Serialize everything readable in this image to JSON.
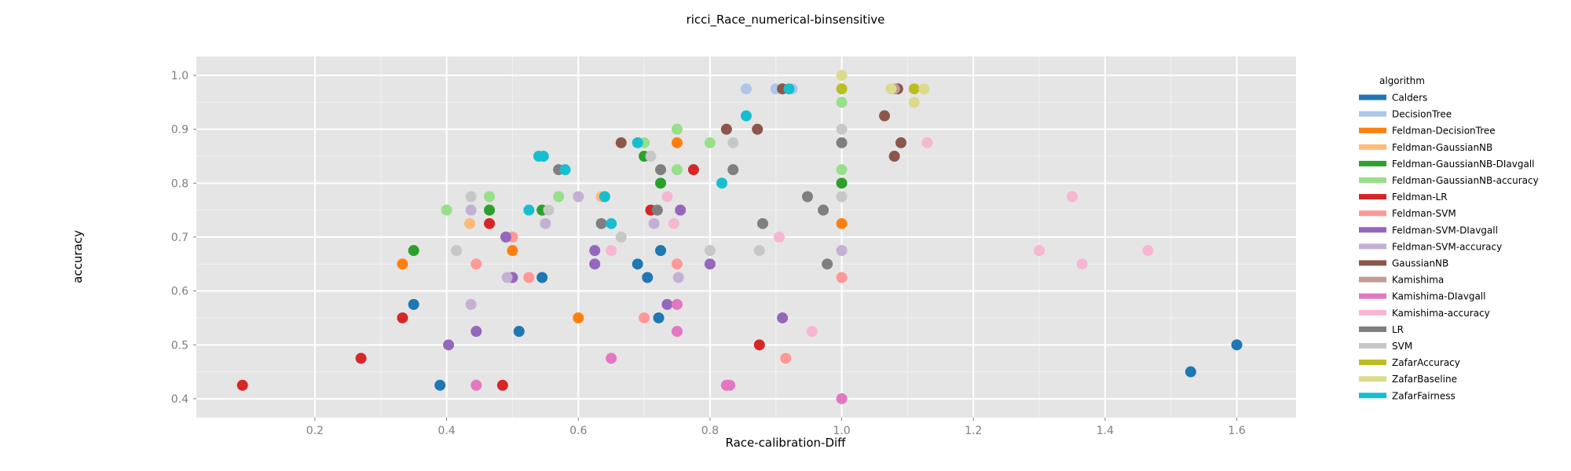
{
  "chart_data": {
    "type": "scatter",
    "title": "ricci_Race_numerical-binsensitive",
    "xlabel": "Race-calibration-Diff",
    "ylabel": "accuracy",
    "xlim": [
      0.02,
      1.69
    ],
    "ylim": [
      0.365,
      1.035
    ],
    "x_ticks": [
      0.2,
      0.4,
      0.6,
      0.8,
      1.0,
      1.2,
      1.4,
      1.6
    ],
    "x_tick_labels": [
      "0.2",
      "0.4",
      "0.6",
      "0.8",
      "1.0",
      "1.2",
      "1.4",
      "1.6"
    ],
    "y_ticks": [
      0.4,
      0.5,
      0.6,
      0.7,
      0.8,
      0.9,
      1.0
    ],
    "y_tick_labels": [
      "0.4",
      "0.5",
      "0.6",
      "0.7",
      "0.8",
      "0.9",
      "1.0"
    ],
    "grid": true,
    "background": "#e5e5e5",
    "legend_title": "algorithm",
    "legend_position": "right",
    "series": [
      {
        "name": "Calders",
        "color": "#1f77b4",
        "points": [
          [
            0.35,
            0.575
          ],
          [
            0.545,
            0.625
          ],
          [
            0.39,
            0.425
          ],
          [
            0.51,
            0.525
          ],
          [
            0.69,
            0.65
          ],
          [
            0.705,
            0.625
          ],
          [
            0.725,
            0.675
          ],
          [
            0.722,
            0.55
          ],
          [
            1.53,
            0.45
          ],
          [
            1.6,
            0.5
          ]
        ]
      },
      {
        "name": "DecisionTree",
        "color": "#aec7e8",
        "points": [
          [
            0.855,
            0.975
          ],
          [
            0.9,
            0.975
          ],
          [
            0.925,
            0.975
          ]
        ]
      },
      {
        "name": "Feldman-DecisionTree",
        "color": "#ff7f0e",
        "points": [
          [
            0.333,
            0.65
          ],
          [
            0.5,
            0.675
          ],
          [
            0.6,
            0.55
          ],
          [
            0.64,
            0.775
          ],
          [
            0.75,
            0.875
          ],
          [
            1.0,
            0.725
          ]
        ]
      },
      {
        "name": "Feldman-GaussianNB",
        "color": "#ffbb78",
        "points": [
          [
            0.435,
            0.725
          ],
          [
            0.635,
            0.775
          ]
        ]
      },
      {
        "name": "Feldman-GaussianNB-DIavgall",
        "color": "#2ca02c",
        "points": [
          [
            0.35,
            0.675
          ],
          [
            0.465,
            0.75
          ],
          [
            0.545,
            0.75
          ],
          [
            0.7,
            0.85
          ],
          [
            0.725,
            0.8
          ],
          [
            1.0,
            0.8
          ]
        ]
      },
      {
        "name": "Feldman-GaussianNB-accuracy",
        "color": "#98df8a",
        "points": [
          [
            0.4,
            0.75
          ],
          [
            0.465,
            0.775
          ],
          [
            0.57,
            0.775
          ],
          [
            0.7,
            0.875
          ],
          [
            0.75,
            0.9
          ],
          [
            0.75,
            0.825
          ],
          [
            0.8,
            0.875
          ],
          [
            1.0,
            0.95
          ],
          [
            1.0,
            0.825
          ]
        ]
      },
      {
        "name": "Feldman-LR",
        "color": "#d62728",
        "points": [
          [
            0.09,
            0.425
          ],
          [
            0.27,
            0.475
          ],
          [
            0.333,
            0.55
          ],
          [
            0.465,
            0.725
          ],
          [
            0.485,
            0.425
          ],
          [
            0.71,
            0.75
          ],
          [
            0.775,
            0.825
          ],
          [
            0.875,
            0.5
          ]
        ]
      },
      {
        "name": "Feldman-SVM",
        "color": "#ff9896",
        "points": [
          [
            0.445,
            0.65
          ],
          [
            0.5,
            0.7
          ],
          [
            0.525,
            0.625
          ],
          [
            0.7,
            0.55
          ],
          [
            0.75,
            0.65
          ],
          [
            0.915,
            0.475
          ],
          [
            1.0,
            0.625
          ]
        ]
      },
      {
        "name": "Feldman-SVM-DIavgall",
        "color": "#9467bd",
        "points": [
          [
            0.403,
            0.5
          ],
          [
            0.445,
            0.525
          ],
          [
            0.49,
            0.7
          ],
          [
            0.5,
            0.625
          ],
          [
            0.625,
            0.65
          ],
          [
            0.625,
            0.675
          ],
          [
            0.735,
            0.575
          ],
          [
            0.755,
            0.75
          ],
          [
            0.8,
            0.65
          ],
          [
            0.91,
            0.55
          ]
        ]
      },
      {
        "name": "Feldman-SVM-accuracy",
        "color": "#c5b0d5",
        "points": [
          [
            0.437,
            0.75
          ],
          [
            0.437,
            0.575
          ],
          [
            0.492,
            0.625
          ],
          [
            0.55,
            0.725
          ],
          [
            0.6,
            0.775
          ],
          [
            0.715,
            0.725
          ],
          [
            0.752,
            0.625
          ],
          [
            1.0,
            0.675
          ]
        ]
      },
      {
        "name": "GaussianNB",
        "color": "#8c564b",
        "points": [
          [
            0.665,
            0.875
          ],
          [
            0.825,
            0.9
          ],
          [
            0.872,
            0.9
          ],
          [
            0.91,
            0.975
          ],
          [
            1.065,
            0.925
          ],
          [
            1.08,
            0.85
          ],
          [
            1.085,
            0.975
          ],
          [
            1.09,
            0.875
          ]
        ]
      },
      {
        "name": "Kamishima",
        "color": "#c49c94",
        "points": [
          [
            1.08,
            0.975
          ]
        ]
      },
      {
        "name": "Kamishima-DIavgall",
        "color": "#e377c2",
        "points": [
          [
            0.445,
            0.425
          ],
          [
            0.65,
            0.475
          ],
          [
            0.75,
            0.575
          ],
          [
            0.75,
            0.525
          ],
          [
            0.825,
            0.425
          ],
          [
            0.83,
            0.425
          ],
          [
            1.0,
            0.4
          ]
        ]
      },
      {
        "name": "Kamishima-accuracy",
        "color": "#f7b6d2",
        "points": [
          [
            0.65,
            0.675
          ],
          [
            0.735,
            0.775
          ],
          [
            0.745,
            0.725
          ],
          [
            0.905,
            0.7
          ],
          [
            0.955,
            0.525
          ],
          [
            1.13,
            0.875
          ],
          [
            1.3,
            0.675
          ],
          [
            1.35,
            0.775
          ],
          [
            1.365,
            0.65
          ],
          [
            1.465,
            0.675
          ]
        ]
      },
      {
        "name": "LR",
        "color": "#7f7f7f",
        "points": [
          [
            0.57,
            0.825
          ],
          [
            0.635,
            0.725
          ],
          [
            0.72,
            0.75
          ],
          [
            0.725,
            0.825
          ],
          [
            0.835,
            0.825
          ],
          [
            0.88,
            0.725
          ],
          [
            0.948,
            0.775
          ],
          [
            0.972,
            0.75
          ],
          [
            0.978,
            0.65
          ],
          [
            1.0,
            0.875
          ]
        ]
      },
      {
        "name": "SVM",
        "color": "#c7c7c7",
        "points": [
          [
            0.415,
            0.675
          ],
          [
            0.437,
            0.775
          ],
          [
            0.555,
            0.75
          ],
          [
            0.665,
            0.7
          ],
          [
            0.71,
            0.85
          ],
          [
            0.8,
            0.675
          ],
          [
            0.835,
            0.875
          ],
          [
            0.875,
            0.675
          ],
          [
            1.0,
            0.9
          ],
          [
            1.0,
            0.775
          ]
        ]
      },
      {
        "name": "ZafarAccuracy",
        "color": "#bcbd22",
        "points": [
          [
            1.0,
            0.975
          ],
          [
            1.11,
            0.975
          ]
        ]
      },
      {
        "name": "ZafarBaseline",
        "color": "#dbdb8d",
        "points": [
          [
            1.0,
            1.0
          ],
          [
            1.075,
            0.975
          ],
          [
            1.11,
            0.95
          ],
          [
            1.125,
            0.975
          ]
        ]
      },
      {
        "name": "ZafarFairness",
        "color": "#17becf",
        "points": [
          [
            0.525,
            0.75
          ],
          [
            0.54,
            0.85
          ],
          [
            0.547,
            0.85
          ],
          [
            0.58,
            0.825
          ],
          [
            0.64,
            0.775
          ],
          [
            0.65,
            0.725
          ],
          [
            0.69,
            0.875
          ],
          [
            0.818,
            0.8
          ],
          [
            0.855,
            0.925
          ],
          [
            0.92,
            0.975
          ]
        ]
      }
    ]
  }
}
